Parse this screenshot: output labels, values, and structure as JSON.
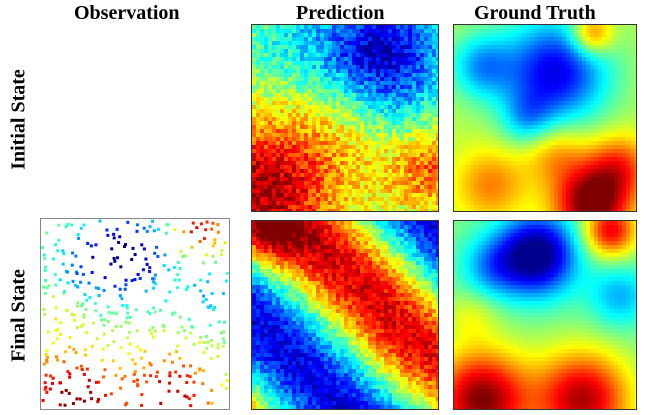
{
  "columns": {
    "observation": "Observation",
    "prediction": "Prediction",
    "ground_truth": "Ground Truth"
  },
  "rows": {
    "initial": "Initial State",
    "final": "Final State"
  },
  "colormap": [
    "#00008f",
    "#0000ff",
    "#0080ff",
    "#00ffff",
    "#80ff80",
    "#ffff00",
    "#ff8000",
    "#ff0000",
    "#800000"
  ]
}
